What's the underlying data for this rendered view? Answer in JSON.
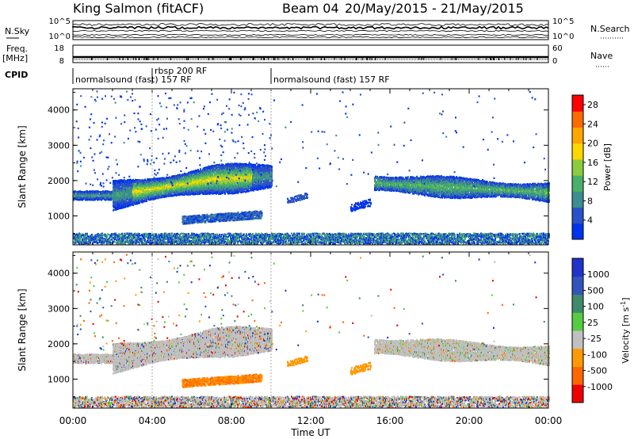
{
  "header": {
    "station": "King Salmon (fitACF)",
    "beam": "Beam 04",
    "date_range": "20/May/2015 - 21/May/2015"
  },
  "summary": {
    "nsky_label": "N.Sky",
    "nsky_ticks": [
      "10^5",
      "10^0"
    ],
    "nsearch_label": "N.Search",
    "nsearch_ticks": [
      "10^5",
      "10^0"
    ],
    "freq_label": "Freq.",
    "freq_unit": "[MHz]",
    "freq_ticks": [
      "18",
      "8"
    ],
    "nave_label": "Nave",
    "nave_ticks": [
      "60",
      "0"
    ],
    "cpid_label": "CPID"
  },
  "cpid_segments": [
    {
      "label": "normalsound (fast) 157 RF",
      "start_hour": 0,
      "end_hour": 4
    },
    {
      "label": "rbsp 200 RF",
      "start_hour": 4,
      "end_hour": 10
    },
    {
      "label": "normalsound (fast) 157 RF",
      "start_hour": 10,
      "end_hour": 24
    }
  ],
  "chart_data": [
    {
      "type": "heatmap",
      "title": "Power",
      "xlabel": "Time UT",
      "ylabel": "Slant Range [km]",
      "xlim": [
        0,
        24
      ],
      "ylim": [
        180,
        4600
      ],
      "xticks": [
        "00:00",
        "04:00",
        "08:00",
        "12:00",
        "16:00",
        "20:00",
        "00:00"
      ],
      "yticks": [
        1000,
        2000,
        3000,
        4000
      ],
      "colorbar": {
        "label": "Power [dB]",
        "ticks": [
          4,
          8,
          12,
          16,
          20,
          24,
          28
        ],
        "range": [
          0,
          30
        ],
        "colors": [
          "#0033ee",
          "#2a52c8",
          "#3d8e8e",
          "#48b06a",
          "#8ccc3c",
          "#ffd700",
          "#ffa500",
          "#ff6a00",
          "#ff0000"
        ]
      },
      "features": [
        {
          "name": "main_band",
          "hours": [
            0,
            10
          ],
          "range_km": [
            1300,
            2500
          ],
          "peak_power_db": 16
        },
        {
          "name": "lower_band",
          "hours": [
            7,
            9.5
          ],
          "range_km": [
            800,
            1000
          ],
          "peak_power_db": 8
        },
        {
          "name": "afternoon_band",
          "hours": [
            15,
            24
          ],
          "range_km": [
            1500,
            2300
          ],
          "peak_power_db": 14
        },
        {
          "name": "near_range",
          "hours": [
            0,
            24
          ],
          "range_km": [
            180,
            500
          ],
          "peak_power_db": 6
        }
      ]
    },
    {
      "type": "heatmap",
      "title": "Velocity",
      "xlabel": "Time UT",
      "ylabel": "Slant Range [km]",
      "xlim": [
        0,
        24
      ],
      "ylim": [
        180,
        4600
      ],
      "xticks": [
        "00:00",
        "04:00",
        "08:00",
        "12:00",
        "16:00",
        "20:00",
        "00:00"
      ],
      "yticks": [
        1000,
        2000,
        3000,
        4000
      ],
      "colorbar": {
        "label": "Velocity [m s",
        "label_superscript": "-1",
        "label_close": "]",
        "ticks": [
          "1000",
          "500",
          "100",
          "25",
          "-25",
          "-100",
          "-500",
          "-1000"
        ],
        "colors": [
          "#2233cc",
          "#3355bb",
          "#3f8a6a",
          "#55cc44",
          "#c0c0c0",
          "#ff9900",
          "#ff6600",
          "#ee0000"
        ]
      },
      "features": [
        {
          "name": "main_band",
          "hours": [
            0,
            10
          ],
          "range_km": [
            1300,
            2500
          ],
          "velocity": "near zero (gray)"
        },
        {
          "name": "lower_band",
          "hours": [
            5.5,
            9.5
          ],
          "range_km": [
            700,
            1100
          ],
          "velocity": "-100 to -500 (orange)"
        },
        {
          "name": "afternoon_band",
          "hours": [
            15,
            24
          ],
          "range_km": [
            1500,
            2400
          ],
          "velocity": "near zero (gray)"
        }
      ]
    }
  ]
}
